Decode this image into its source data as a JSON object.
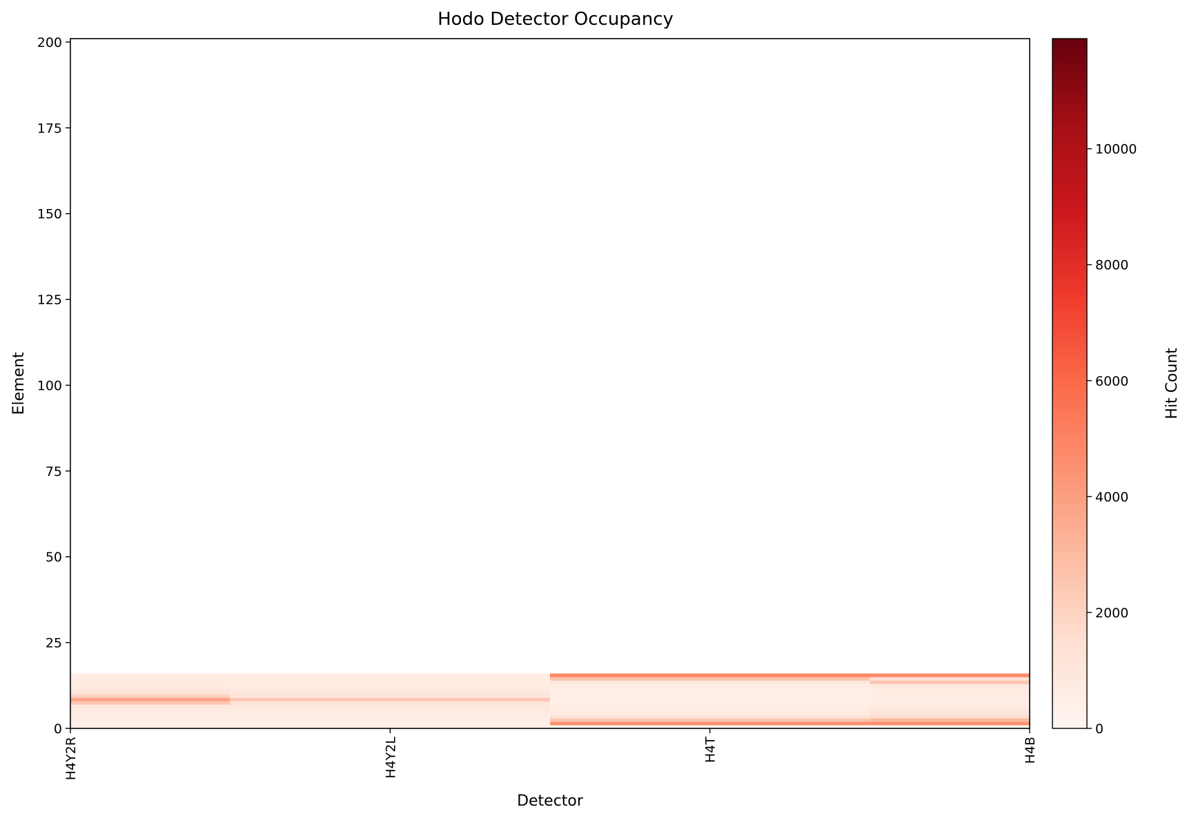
{
  "chart_data": {
    "type": "heatmap",
    "title": "Hodo Detector Occupancy",
    "xlabel": "Detector",
    "ylabel": "Element",
    "colorbar_label": "Hit Count",
    "colormap": "Reds",
    "colormap_stops": [
      "#fff5f0",
      "#fee0d2",
      "#fcbba1",
      "#fc9272",
      "#fb6a4a",
      "#ef3b2c",
      "#cb181d",
      "#a50f15",
      "#67000d"
    ],
    "x_tick_labels": [
      "H4Y2R",
      "H4Y2L",
      "H4T",
      "H4B"
    ],
    "y_ticks": [
      0,
      25,
      50,
      75,
      100,
      125,
      150,
      175,
      200
    ],
    "ylim": [
      0,
      201
    ],
    "color_ticks": [
      0,
      2000,
      4000,
      6000,
      8000,
      10000
    ],
    "color_range": [
      0,
      11900
    ],
    "grid": false,
    "detectors": [
      {
        "name": "H4Y2R",
        "elements": 16,
        "counts": [
          400,
          450,
          500,
          550,
          600,
          750,
          900,
          2500,
          3800,
          2000,
          1100,
          900,
          800,
          700,
          650,
          600
        ]
      },
      {
        "name": "H4Y2L",
        "elements": 16,
        "counts": [
          400,
          450,
          500,
          550,
          600,
          750,
          900,
          1200,
          2500,
          1100,
          900,
          800,
          700,
          650,
          600,
          550
        ]
      },
      {
        "name": "H4T",
        "elements": 16,
        "counts": [
          100,
          4500,
          2500,
          1200,
          800,
          600,
          500,
          450,
          450,
          450,
          500,
          550,
          600,
          900,
          2600,
          4800
        ]
      },
      {
        "name": "H4B",
        "elements": 16,
        "counts": [
          100,
          4500,
          3000,
          1500,
          1100,
          900,
          700,
          600,
          550,
          550,
          600,
          700,
          900,
          2500,
          1400,
          4800
        ]
      }
    ]
  }
}
